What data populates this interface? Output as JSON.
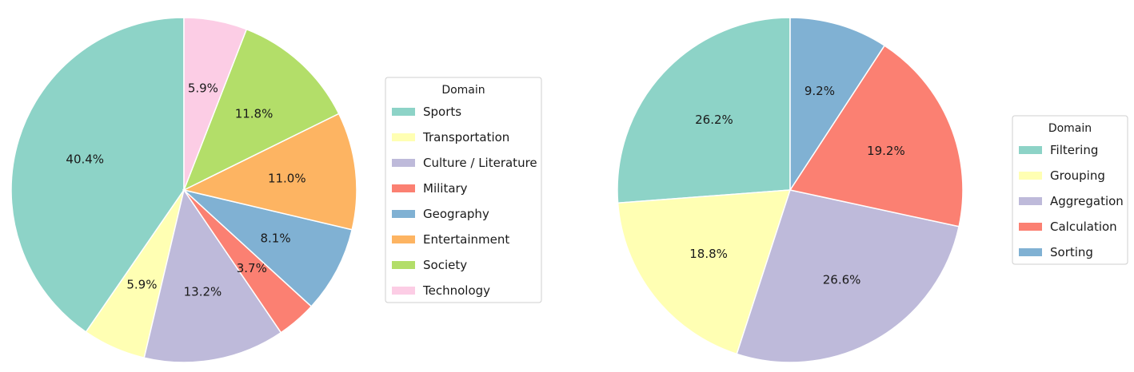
{
  "chart_data": [
    {
      "type": "pie",
      "legend_title": "Domain",
      "legend_placement": "right",
      "start_angle_deg": 90,
      "direction": "counterclockwise",
      "categories": [
        "Sports",
        "Transportation",
        "Culture / Literature",
        "Military",
        "Geography",
        "Entertainment",
        "Society",
        "Technology"
      ],
      "values": [
        40.4,
        5.9,
        13.2,
        3.7,
        8.1,
        11.0,
        11.8,
        5.9
      ],
      "labels": [
        "40.4%",
        "5.9%",
        "13.2%",
        "3.7%",
        "8.1%",
        "11.0%",
        "11.8%",
        "5.9%"
      ],
      "colors": [
        "#8dd3c7",
        "#ffffb3",
        "#bebada",
        "#fb8072",
        "#80b1d3",
        "#fdb462",
        "#b3de69",
        "#fccde5"
      ]
    },
    {
      "type": "pie",
      "legend_title": "Domain",
      "legend_placement": "right",
      "start_angle_deg": 90,
      "direction": "counterclockwise",
      "categories": [
        "Filtering",
        "Grouping",
        "Aggregation",
        "Calculation",
        "Sorting"
      ],
      "values": [
        26.2,
        18.8,
        26.6,
        19.2,
        9.2
      ],
      "labels": [
        "26.2%",
        "18.8%",
        "26.6%",
        "19.2%",
        "9.2%"
      ],
      "colors": [
        "#8dd3c7",
        "#ffffb3",
        "#bebada",
        "#fb8072",
        "#80b1d3"
      ]
    }
  ]
}
